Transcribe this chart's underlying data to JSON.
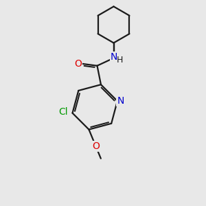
{
  "bg_color": "#e8e8e8",
  "bond_color": "#1a1a1a",
  "bond_width": 1.6,
  "atom_colors": {
    "O": "#dd0000",
    "N": "#0000cc",
    "Cl": "#009900",
    "C": "#1a1a1a"
  },
  "font_size": 10,
  "font_size_H": 9
}
